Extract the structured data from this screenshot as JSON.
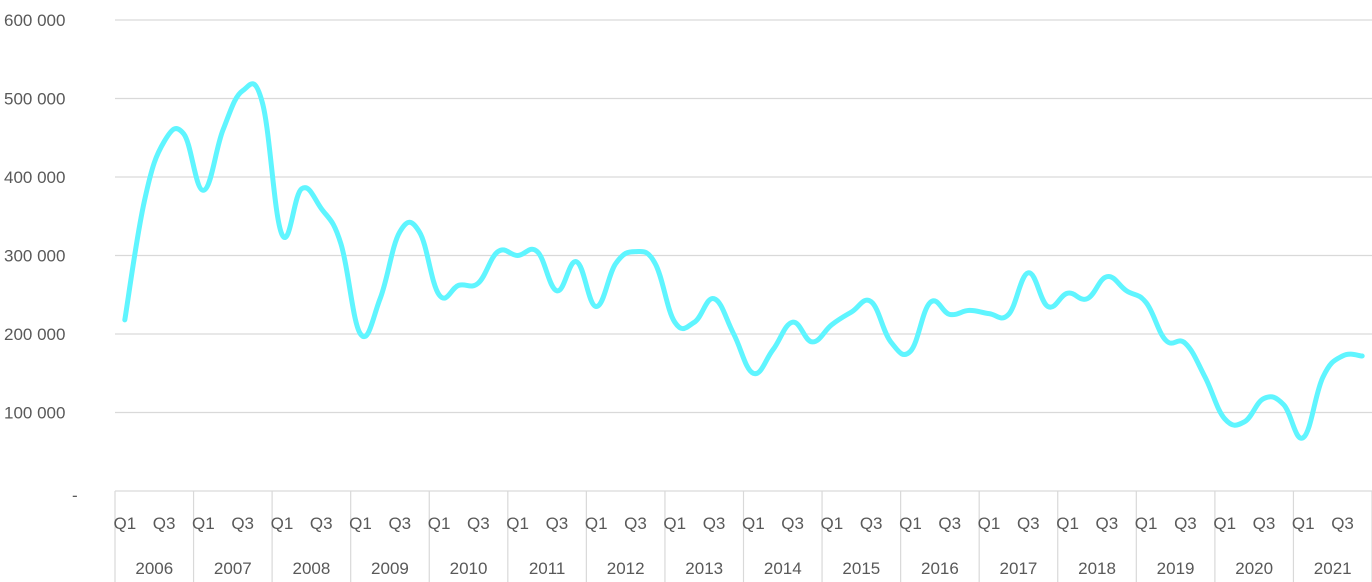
{
  "chart_data": {
    "type": "line",
    "title": "",
    "xlabel": "",
    "ylabel": "",
    "ylim": [
      0,
      600000
    ],
    "yticks": [
      {
        "value": 0,
        "label": "-"
      },
      {
        "value": 100000,
        "label": "100 000"
      },
      {
        "value": 200000,
        "label": "200 000"
      },
      {
        "value": 300000,
        "label": "300 000"
      },
      {
        "value": 400000,
        "label": "400 000"
      },
      {
        "value": 500000,
        "label": "500 000"
      },
      {
        "value": 600000,
        "label": "600 000"
      }
    ],
    "grid": "horizontal",
    "legend": "none",
    "line_color": "#5ff5ff",
    "grid_color": "#d9d9d9",
    "quarter_labels": [
      "Q1",
      "Q3"
    ],
    "years": [
      "2006",
      "2007",
      "2008",
      "2009",
      "2010",
      "2011",
      "2012",
      "2013",
      "2014",
      "2015",
      "2016",
      "2017",
      "2018",
      "2019",
      "2020",
      "2021"
    ],
    "series": [
      {
        "values": [
          218000,
          370000,
          445000,
          455000,
          383000,
          460000,
          510000,
          495000,
          327000,
          385000,
          360000,
          315000,
          200000,
          245000,
          330000,
          330000,
          250000,
          262000,
          265000,
          305000,
          300000,
          305000,
          255000,
          292000,
          235000,
          290000,
          305000,
          290000,
          215000,
          215000,
          245000,
          200000,
          150000,
          180000,
          215000,
          190000,
          212000,
          228000,
          241000,
          190000,
          178000,
          240000,
          225000,
          230000,
          226000,
          225000,
          278000,
          235000,
          252000,
          245000,
          273000,
          255000,
          240000,
          192000,
          188000,
          145000,
          92000,
          88000,
          118000,
          110000,
          68000,
          145000,
          172000,
          172000
        ]
      }
    ]
  }
}
